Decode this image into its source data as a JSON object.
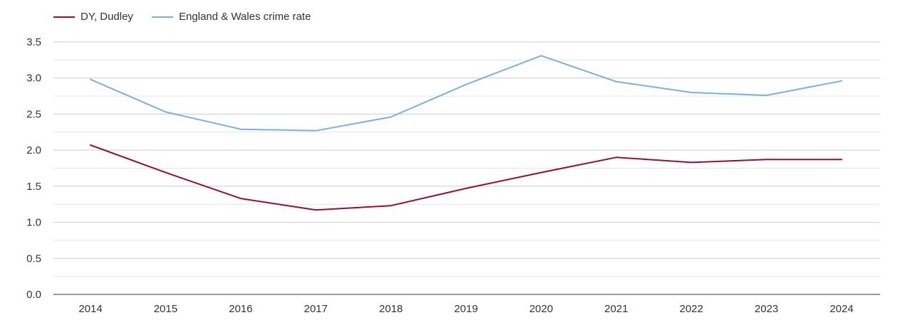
{
  "chart_data": {
    "type": "line",
    "title": "",
    "xlabel": "",
    "ylabel": "",
    "categories": [
      "2014",
      "2015",
      "2016",
      "2017",
      "2018",
      "2019",
      "2020",
      "2021",
      "2022",
      "2023",
      "2024"
    ],
    "series": [
      {
        "name": "DY, Dudley",
        "color": "#9b0d2d",
        "values": [
          2.07,
          1.69,
          1.33,
          1.17,
          1.23,
          1.47,
          1.69,
          1.9,
          1.83,
          1.87,
          1.87
        ]
      },
      {
        "name": "England & Wales crime rate",
        "color": "#7ab2d4",
        "values": [
          2.98,
          2.53,
          2.29,
          2.27,
          2.46,
          2.91,
          3.31,
          2.95,
          2.8,
          2.76,
          2.96
        ]
      }
    ],
    "ylim": [
      0,
      3.5
    ],
    "yticks": [
      "0.0",
      "0.5",
      "1.0",
      "1.5",
      "2.0",
      "2.5",
      "3.0",
      "3.5"
    ],
    "ytick_values": [
      0,
      0.5,
      1.0,
      1.5,
      2.0,
      2.5,
      3.0,
      3.5
    ],
    "grid": true,
    "legend": "top-left",
    "colors": {
      "major_grid": "#cccccc",
      "minor_grid": "#e6e6e6",
      "axis": "#333333"
    }
  }
}
